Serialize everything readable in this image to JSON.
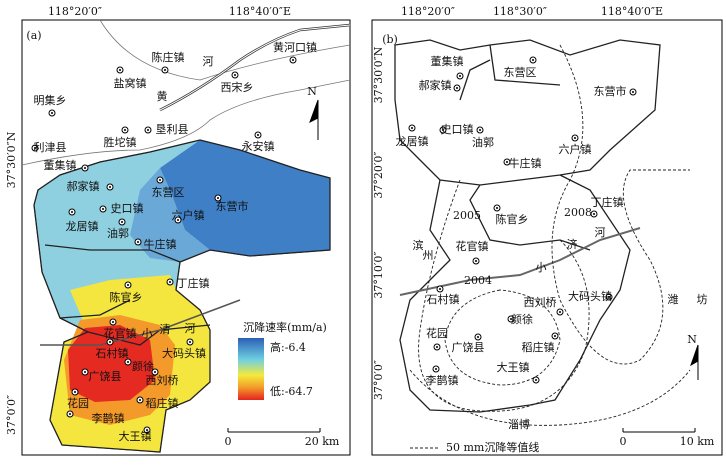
{
  "panel_a": {
    "label": "(a)",
    "top_ticks": [
      "118°20′0″",
      "118°40′0″E"
    ],
    "left_ticks": [
      "37°30′0″N",
      "37°0′0″"
    ],
    "places": [
      "陈庄镇",
      "盐窝镇",
      "黄河口镇",
      "河",
      "西宋乡",
      "黄",
      "明集乡",
      "垦利县",
      "胜坨镇",
      "永安镇",
      "利津县",
      "董集镇",
      "东营区",
      "郝家镇",
      "东营市",
      "史口镇",
      "六户镇",
      "龙居镇",
      "油郭",
      "牛庄镇",
      "丁庄镇",
      "陈官乡",
      "花官镇",
      "小",
      "清",
      "河",
      "石村镇",
      "大码头镇",
      "颜徐",
      "广饶县",
      "西刘桥",
      "花园",
      "稻庄镇",
      "李鹊镇",
      "大王镇"
    ],
    "legend": {
      "title": "沉降速率(mm/a)",
      "high": "高:-6.4",
      "low": "低:-64.7"
    },
    "scale": [
      "0",
      "20 km"
    ],
    "north": "N"
  },
  "panel_b": {
    "label": "(b)",
    "top_ticks": [
      "118°20′0″",
      "118°30′0″",
      "118°40′0″E"
    ],
    "left_ticks": [
      "37°30′0″N",
      "37°20′0″",
      "37°10′0″",
      "37°0′0″"
    ],
    "places": [
      "董集镇",
      "东营区",
      "郝家镇",
      "东营市",
      "史口镇",
      "龙居镇",
      "油郭",
      "六户镇",
      "牛庄镇",
      "丁庄镇",
      "陈官乡",
      "2005",
      "2008",
      "滨",
      "州",
      "花官镇",
      "济",
      "河",
      "小",
      "2004",
      "石村镇",
      "西刘桥",
      "大码头镇",
      "潍",
      "坊",
      "颜徐",
      "花园",
      "广饶县",
      "稻庄镇",
      "大王镇",
      "李鹊镇",
      "淄博"
    ],
    "legend": "50 mm沉降等值线",
    "scale": [
      "0",
      "10 km"
    ],
    "north": "N"
  }
}
